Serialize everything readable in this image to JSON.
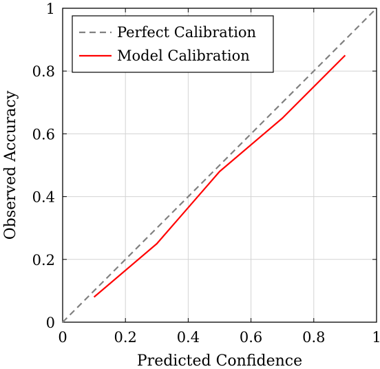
{
  "chart_data": {
    "type": "line",
    "xlabel": "Predicted Confidence",
    "ylabel": "Observed Accuracy",
    "xlim": [
      0,
      1
    ],
    "ylim": [
      0,
      1
    ],
    "grid": true,
    "legend_position": "top-left",
    "x_ticks": [
      "0",
      "0.2",
      "0.4",
      "0.6",
      "0.8",
      "1"
    ],
    "y_ticks": [
      "0",
      "0.2",
      "0.4",
      "0.6",
      "0.8",
      "1"
    ],
    "series": [
      {
        "name": "Perfect Calibration",
        "style": "dashed",
        "color": "#808080",
        "x": [
          0,
          1
        ],
        "y": [
          0,
          1
        ]
      },
      {
        "name": "Model Calibration",
        "style": "solid",
        "color": "#ff0000",
        "x": [
          0.1,
          0.3,
          0.5,
          0.7,
          0.9
        ],
        "y": [
          0.08,
          0.25,
          0.48,
          0.65,
          0.85
        ]
      }
    ]
  }
}
